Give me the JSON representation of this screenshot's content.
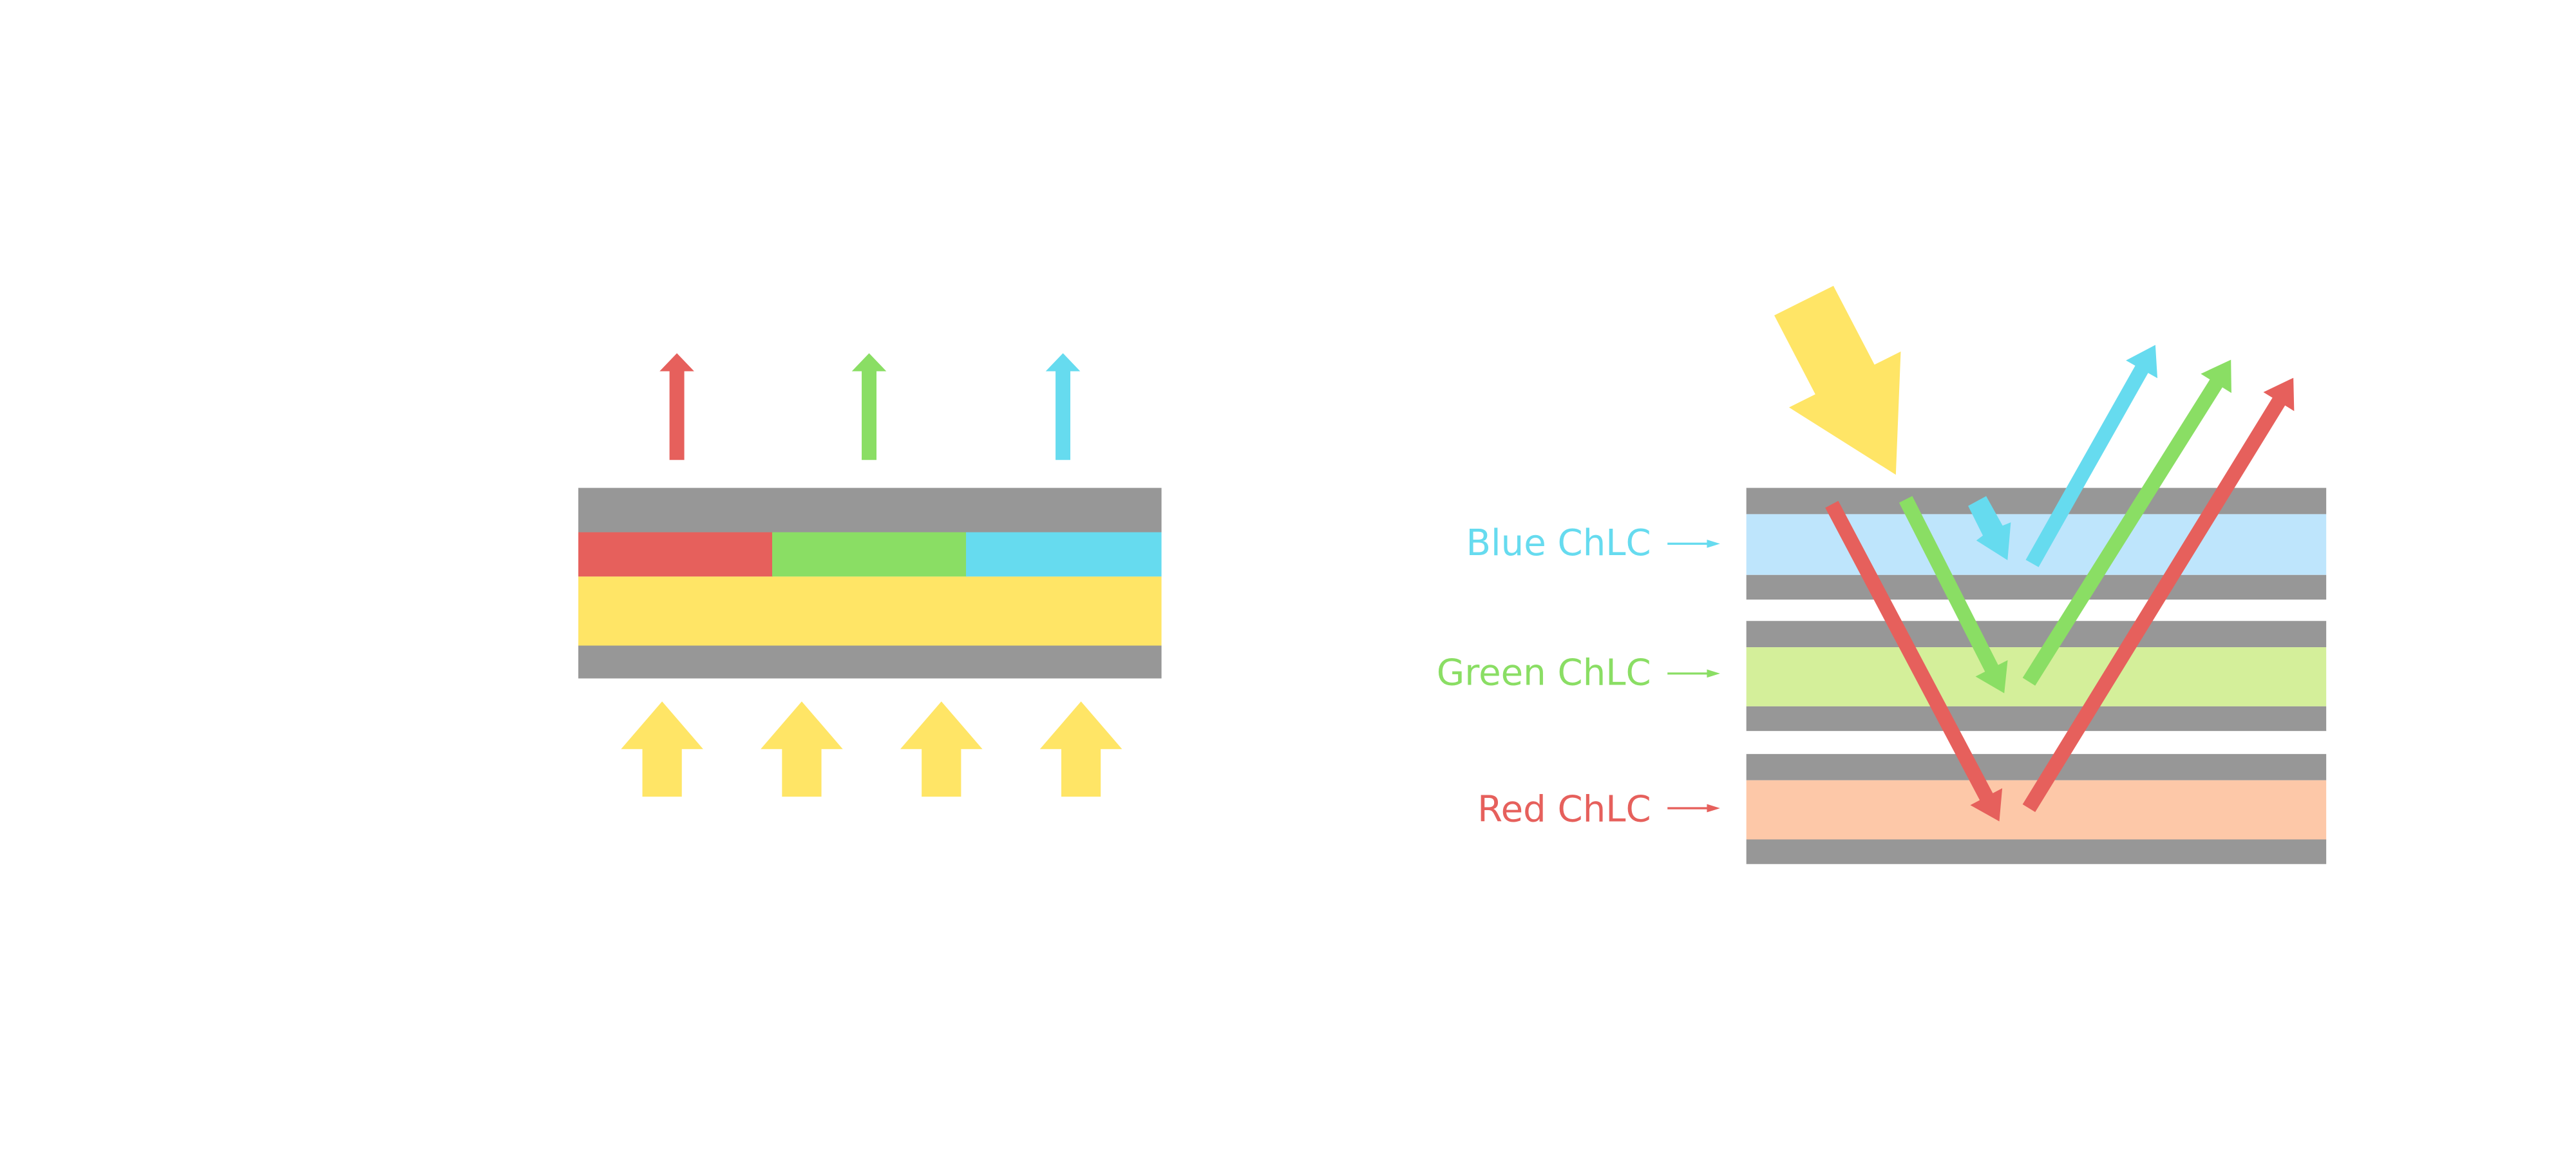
{
  "colors": {
    "red": "#e6605c",
    "green": "#8ade64",
    "cyan": "#66dbef",
    "yellow": "#ffe566",
    "gray": "#979797",
    "blue_layer": "#bee5fc",
    "green_layer": "#d4ef9a",
    "red_layer": "#fdc8a8"
  },
  "labels": {
    "blue": "Blue ChLC",
    "green": "Green ChLC",
    "red": "Red ChLC"
  }
}
